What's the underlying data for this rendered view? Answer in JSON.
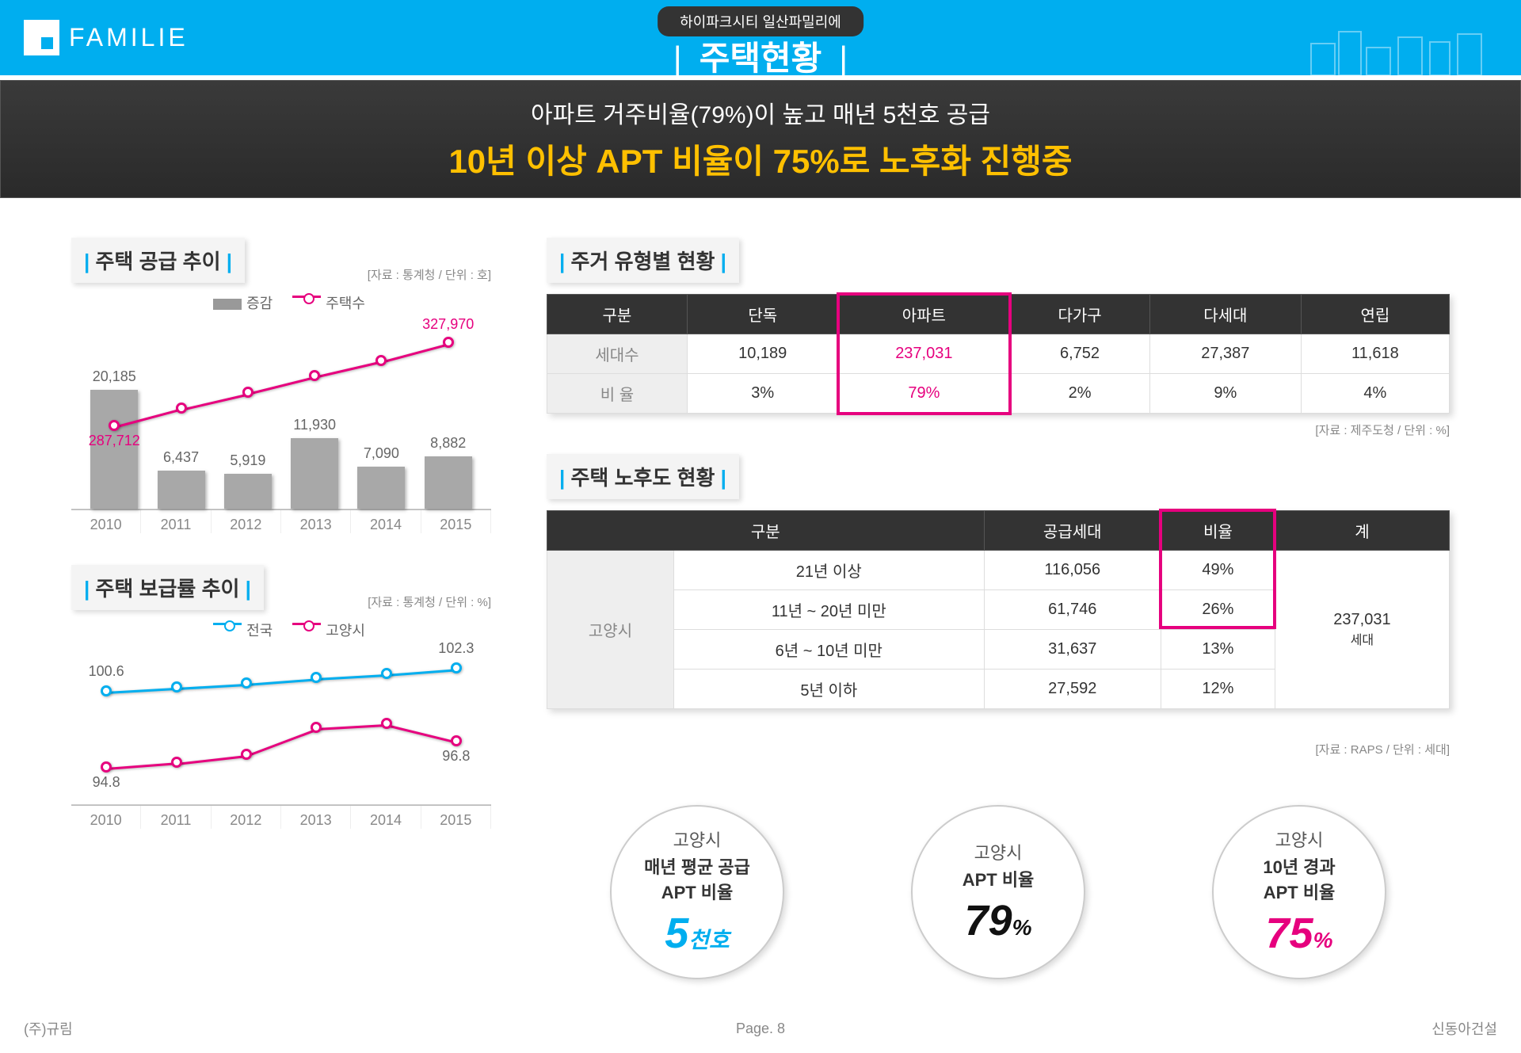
{
  "header": {
    "brand": "FAMILIE",
    "tag": "하이파크시티 일산파밀리에",
    "title": "주택현황"
  },
  "banner": {
    "line1": "아파트 거주비율(79%)이 높고 매년 5천호 공급",
    "line2": "10년 이상 APT 비율이 75%로 노후화 진행중"
  },
  "chart1": {
    "title": "주택 공급 추이",
    "note": "[자료 : 통계청 / 단위 : 호]",
    "legend_a": "증감",
    "legend_b": "주택수",
    "categories": [
      "2010",
      "2011",
      "2012",
      "2013",
      "2014",
      "2015"
    ],
    "bars": [
      20185,
      6437,
      5919,
      11930,
      7090,
      8882
    ],
    "bar_labels": [
      "20,185",
      "6,437",
      "5,919",
      "11,930",
      "7,090",
      "8,882"
    ],
    "line_min": 287712,
    "line_max": 327970,
    "line_start_label": "287,712",
    "line_end_label": "327,970",
    "line_y": [
      30,
      45,
      58,
      72,
      85,
      100
    ],
    "bar_color": "#a8a8a8",
    "line_color": "#e6007e"
  },
  "chart2": {
    "title": "주택 보급률 추이",
    "note": "[자료 : 통계청 / 단위 : %]",
    "legend_a": "전국",
    "legend_b": "고양시",
    "categories": [
      "2010",
      "2011",
      "2012",
      "2013",
      "2014",
      "2015"
    ],
    "series_a": [
      100.6,
      100.9,
      101.2,
      101.6,
      101.9,
      102.3
    ],
    "series_b": [
      94.8,
      95.2,
      95.8,
      97.8,
      98.1,
      96.8
    ],
    "a_start": "100.6",
    "a_end": "102.3",
    "b_start": "94.8",
    "b_end": "96.8",
    "color_a": "#00aeef",
    "color_b": "#e6007e"
  },
  "table1": {
    "title": "주거 유형별 현황",
    "cols": [
      "구분",
      "단독",
      "아파트",
      "다가구",
      "다세대",
      "연립"
    ],
    "row1_head": "세대수",
    "row1": [
      "10,189",
      "237,031",
      "6,752",
      "27,387",
      "11,618"
    ],
    "row2_head": "비 율",
    "row2": [
      "3%",
      "79%",
      "2%",
      "9%",
      "4%"
    ],
    "note": "[자료 : 제주도청 / 단위 : %]",
    "hl_index": 2
  },
  "table2": {
    "title": "주택 노후도 현황",
    "cols": [
      "구분",
      "",
      "공급세대",
      "비율",
      "계"
    ],
    "region": "고양시",
    "rows": [
      {
        "label": "21년 이상",
        "supply": "116,056",
        "ratio": "49%"
      },
      {
        "label": "11년 ~ 20년 미만",
        "supply": "61,746",
        "ratio": "26%"
      },
      {
        "label": "6년 ~ 10년 미만",
        "supply": "31,637",
        "ratio": "13%"
      },
      {
        "label": "5년 이하",
        "supply": "27,592",
        "ratio": "12%"
      }
    ],
    "total_val": "237,031",
    "total_unit": "세대",
    "note": "[자료 : RAPS / 단위 : 세대]"
  },
  "kpis": [
    {
      "top": "고양시",
      "mid": "매년 평균 공급\nAPT 비율",
      "big": "5",
      "suffix": "천호",
      "color": "#00aeef"
    },
    {
      "top": "고양시",
      "mid": "APT 비율",
      "big": "79",
      "suffix": "%",
      "color": "#111"
    },
    {
      "top": "고양시",
      "mid": "10년 경과\nAPT 비율",
      "big": "75",
      "suffix": "%",
      "color": "#e6007e"
    }
  ],
  "footer": {
    "left": "(주)규림",
    "center_label": "Page.",
    "center_num": "8",
    "right": "신동아건설"
  }
}
